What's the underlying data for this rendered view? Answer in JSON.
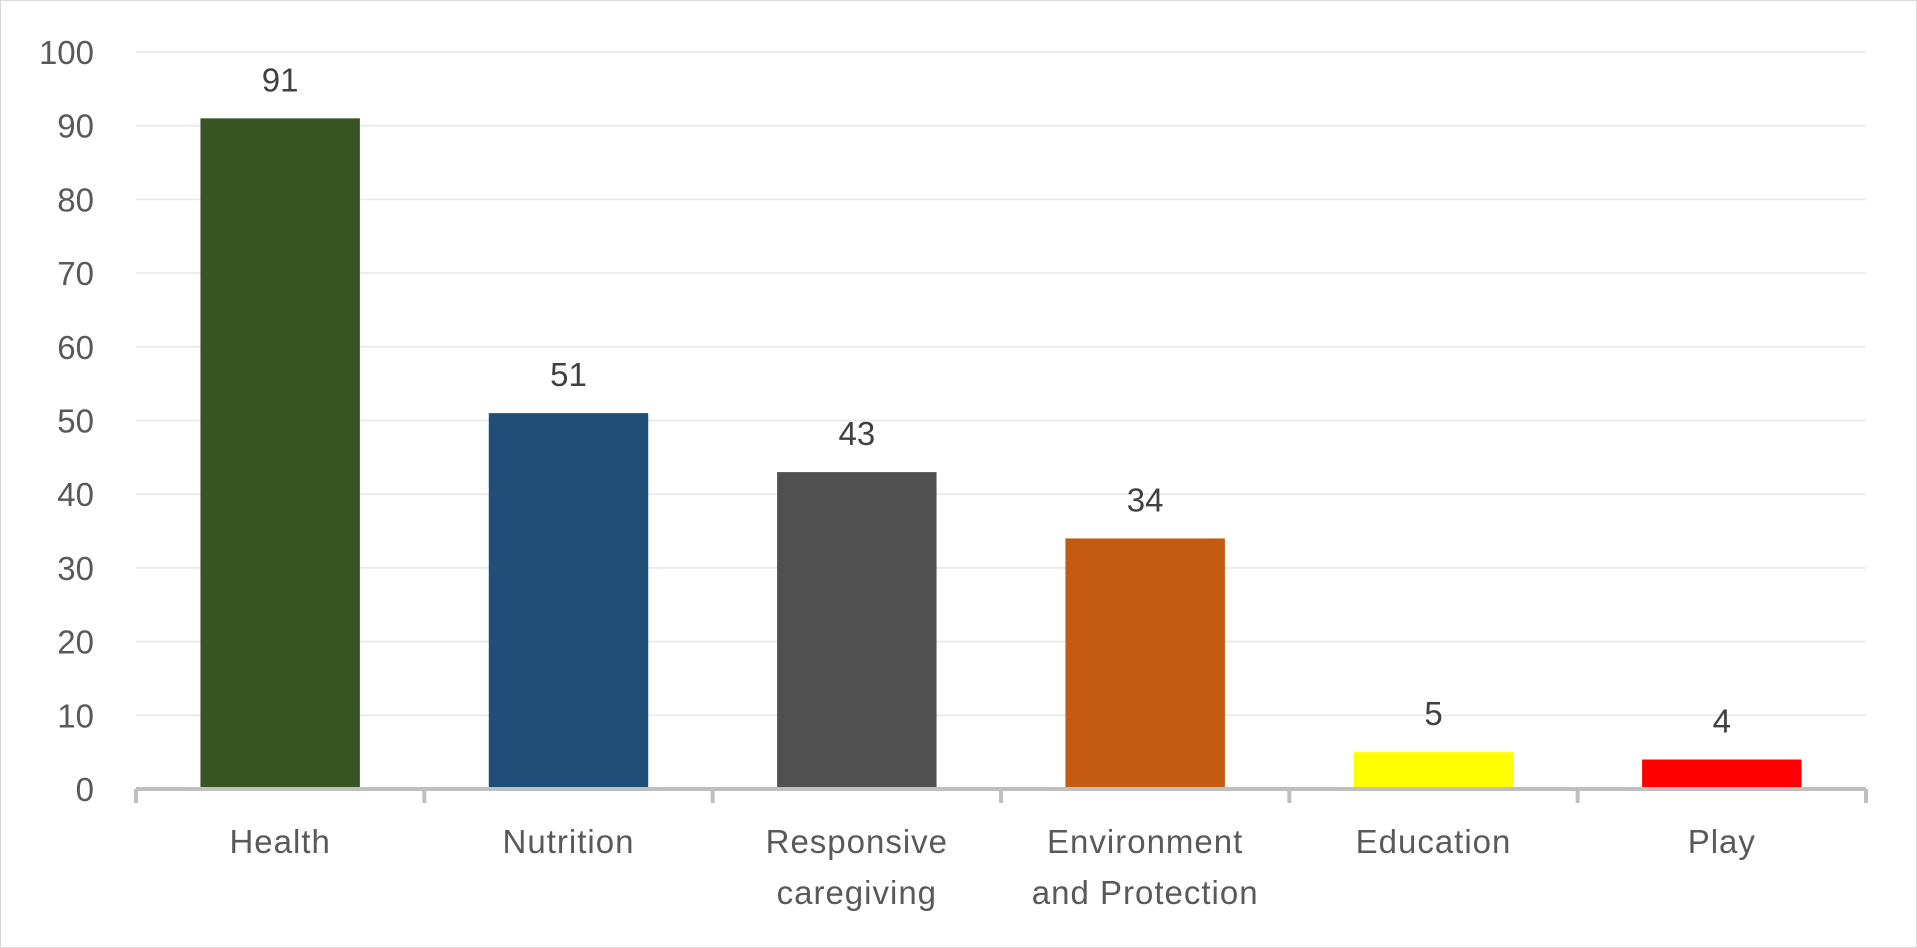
{
  "chart_data": {
    "type": "bar",
    "title": "",
    "xlabel": "",
    "ylabel": "",
    "categories": [
      [
        "Health"
      ],
      [
        "Nutrition"
      ],
      [
        "Responsive",
        "caregiving"
      ],
      [
        "Environment",
        "and Protection"
      ],
      [
        "Education"
      ],
      [
        "Play"
      ]
    ],
    "values": [
      91,
      51,
      43,
      34,
      5,
      4
    ],
    "data_labels": [
      "91",
      "51",
      "43",
      "34",
      "5",
      "4"
    ],
    "bar_colors": [
      "#375623",
      "#1F4E79",
      "#505050",
      "#C55A11",
      "#FFFF00",
      "#FF0000"
    ],
    "ylim": [
      0,
      100
    ],
    "yticks": [
      0,
      10,
      20,
      30,
      40,
      50,
      60,
      70,
      80,
      90,
      100
    ],
    "grid": true,
    "legend": "none"
  },
  "colors": {
    "gridline": "#ececec",
    "axis_line": "#bfbfbf",
    "tick_text": "#595959",
    "data_label_text": "#404040"
  }
}
